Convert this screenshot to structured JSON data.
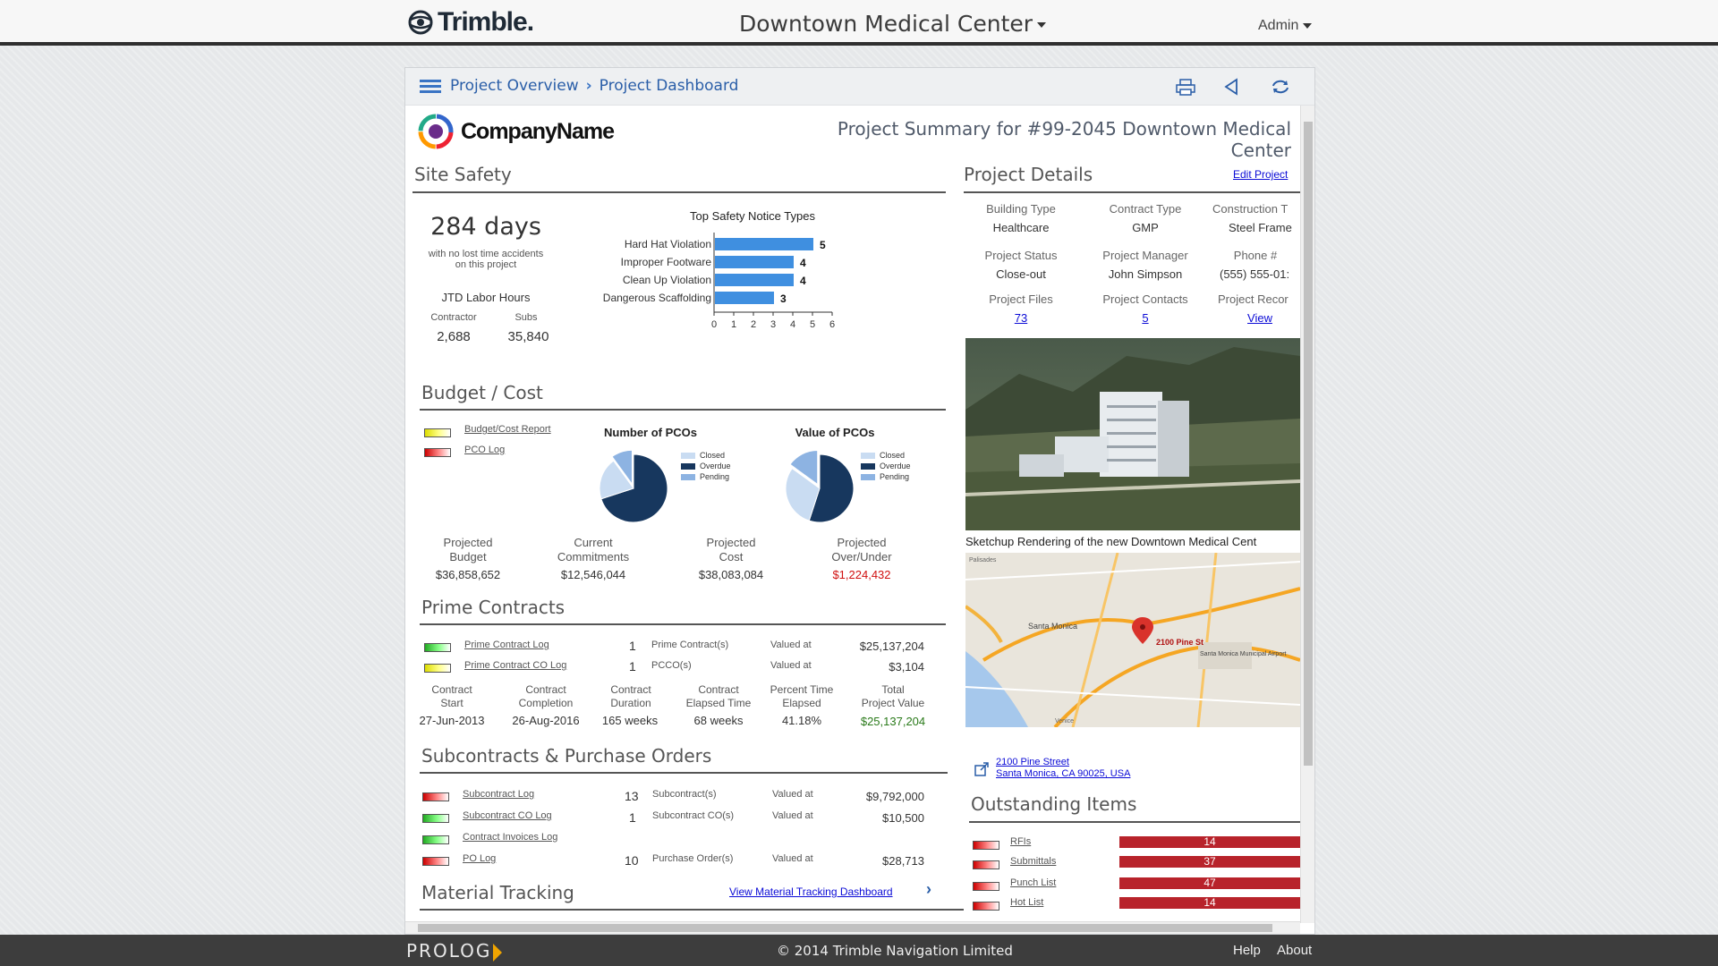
{
  "topbar": {
    "brand": "Trimble.",
    "project_title": "Downtown Medical Center",
    "admin": "Admin"
  },
  "breadcrumb": {
    "item1": "Project Overview",
    "item2": "Project Dashboard"
  },
  "company": {
    "name": "CompanyName"
  },
  "summary_title": "Project Summary for #99-2045 Downtown Medical Center",
  "site_safety": {
    "title": "Site Safety",
    "days": "284 days",
    "days_caption_1": "with no lost time accidents",
    "days_caption_2": "on this project",
    "jtd_label": "JTD Labor Hours",
    "contractor_label": "Contractor",
    "subs_label": "Subs",
    "contractor_value": "2,688",
    "subs_value": "35,840"
  },
  "chart_data": {
    "type": "bar",
    "title": "Top Safety Notice Types",
    "categories": [
      "Hard Hat Violation",
      "Improper Footware",
      "Clean Up Violation",
      "Dangerous Scaffolding"
    ],
    "values": [
      5,
      4,
      4,
      3
    ],
    "xlim": [
      0,
      6
    ],
    "ticks": [
      "0",
      "1",
      "2",
      "3",
      "4",
      "5",
      "6"
    ],
    "orientation": "horizontal",
    "bar_color": "#3f8fe0"
  },
  "budget": {
    "title": "Budget / Cost",
    "links": [
      "Budget/Cost Report",
      "PCO Log"
    ],
    "pco_count_title": "Number of PCOs",
    "pco_value_title": "Value of PCOs",
    "legend": [
      "Closed",
      "Overdue",
      "Pending"
    ],
    "legend_colors": [
      "#c9dcf2",
      "#17375e",
      "#8db3e2"
    ],
    "pie_count": [
      {
        "label": "Closed",
        "value": 20
      },
      {
        "label": "Overdue",
        "value": 70
      },
      {
        "label": "Pending",
        "value": 10
      }
    ],
    "pie_value": [
      {
        "label": "Closed",
        "value": 30
      },
      {
        "label": "Overdue",
        "value": 55
      },
      {
        "label": "Pending",
        "value": 15
      }
    ],
    "proj_budget_label": "Projected Budget",
    "proj_budget_l1": "Projected",
    "proj_budget_l2": "Budget",
    "proj_budget_value": "$36,858,652",
    "commit_l1": "Current",
    "commit_l2": "Commitments",
    "commit_value": "$12,546,044",
    "cost_l1": "Projected",
    "cost_l2": "Cost",
    "cost_value": "$38,083,084",
    "over_l1": "Projected",
    "over_l2": "Over/Under",
    "over_value": "$1,224,432"
  },
  "prime": {
    "title": "Prime Contracts",
    "row1": {
      "link": "Prime Contract Log",
      "count": "1",
      "type": "Prime Contract(s)",
      "valued": "Valued at",
      "value": "$25,137,204"
    },
    "row2": {
      "link": "Prime Contract CO Log",
      "count": "1",
      "type": "PCCO(s)",
      "valued": "Valued at",
      "value": "$3,104"
    },
    "c1_l1": "Contract",
    "c1_l2": "Start",
    "c1_v": "27-Jun-2013",
    "c2_l1": "Contract",
    "c2_l2": "Completion",
    "c2_v": "26-Aug-2016",
    "c3_l1": "Contract",
    "c3_l2": "Duration",
    "c3_v": "165 weeks",
    "c4_l1": "Contract",
    "c4_l2": "Elapsed Time",
    "c4_v": "68 weeks",
    "c5_l1": "Percent Time",
    "c5_l2": "Elapsed",
    "c5_v": "41.18%",
    "c6_l1": "Total",
    "c6_l2": "Project Value",
    "c6_v": "$25,137,204"
  },
  "subcontracts": {
    "title": "Subcontracts & Purchase Orders",
    "rows": [
      {
        "link": "Subcontract Log",
        "count": "13",
        "type": "Subcontract(s)",
        "valued": "Valued at",
        "value": "$9,792,000"
      },
      {
        "link": "Subcontract CO Log",
        "count": "1",
        "type": "Subcontract CO(s)",
        "valued": "Valued at",
        "value": "$10,500"
      },
      {
        "link": "Contract Invoices Log"
      },
      {
        "link": "PO Log",
        "count": "10",
        "type": "Purchase Order(s)",
        "valued": "Valued at",
        "value": "$28,713"
      }
    ]
  },
  "material": {
    "title": "Material Tracking",
    "link": "View Material Tracking Dashboard"
  },
  "details": {
    "title": "Project Details",
    "edit": "Edit Project",
    "building_type_label": "Building Type",
    "building_type": "Healthcare",
    "contract_type_label": "Contract Type",
    "contract_type": "GMP",
    "construction_label": "Construction T",
    "construction": "Steel Frame",
    "status_label": "Project Status",
    "status": "Close-out",
    "manager_label": "Project Manager",
    "manager": "John Simpson",
    "phone_label": "Phone #",
    "phone": "(555) 555-01:",
    "files_label": "Project Files",
    "files": "73",
    "contacts_label": "Project Contacts",
    "contacts": "5",
    "records_label": "Project Recor",
    "records": "View",
    "image_caption": "Sketchup Rendering of the new Downtown Medical Cent",
    "map_pin_label": "2100 Pine St",
    "map_labels": [
      "Santa Monica",
      "Santa Monica Municipal Airport",
      "Palisades",
      "Venice"
    ],
    "address1": "2100 Pine Street",
    "address2": "Santa Monica, CA 90025, USA"
  },
  "outstanding": {
    "title": "Outstanding Items",
    "items": [
      {
        "label": "RFIs",
        "count": "14"
      },
      {
        "label": "Submittals",
        "count": "37"
      },
      {
        "label": "Punch List",
        "count": "47"
      },
      {
        "label": "Hot List",
        "count": "14"
      }
    ]
  },
  "footer": {
    "logo": "PROLOG",
    "copyright": "© 2014 Trimble Navigation Limited",
    "help": "Help",
    "about": "About"
  }
}
